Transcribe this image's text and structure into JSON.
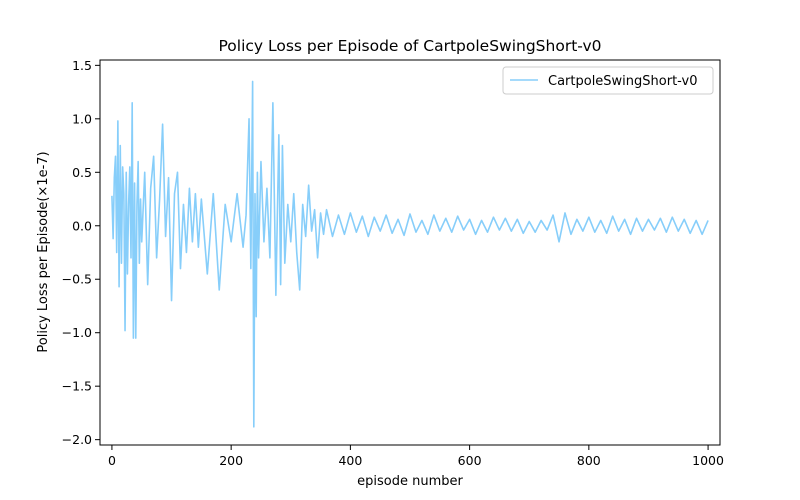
{
  "chart_data": {
    "type": "line",
    "title": "Policy Loss per Episode of CartpoleSwingShort-v0",
    "xlabel": "episode number",
    "ylabel": "Policy Loss per Episode(×1e-7)",
    "xlim": [
      -20,
      1020
    ],
    "ylim": [
      -2.05,
      1.55
    ],
    "xticks": [
      0,
      200,
      400,
      600,
      800,
      1000
    ],
    "xtick_labels": [
      "0",
      "200",
      "400",
      "600",
      "800",
      "1000"
    ],
    "yticks": [
      -2.0,
      -1.5,
      -1.0,
      -0.5,
      0.0,
      0.5,
      1.0,
      1.5
    ],
    "ytick_labels": [
      "−2.0",
      "−1.5",
      "−1.0",
      "−0.5",
      "0.0",
      "0.5",
      "1.0",
      "1.5"
    ],
    "grid": false,
    "legend": {
      "position": "top-right"
    },
    "series": [
      {
        "name": "CartpoleSwingShort-v0",
        "color": "#87cefa",
        "x": [
          0,
          2,
          4,
          6,
          8,
          10,
          12,
          14,
          16,
          18,
          20,
          22,
          24,
          26,
          28,
          30,
          32,
          34,
          36,
          38,
          40,
          42,
          44,
          46,
          48,
          50,
          55,
          60,
          65,
          70,
          75,
          80,
          85,
          90,
          95,
          100,
          105,
          110,
          115,
          120,
          125,
          130,
          135,
          140,
          145,
          150,
          160,
          170,
          180,
          190,
          200,
          210,
          220,
          225,
          230,
          233,
          236,
          238,
          240,
          242,
          244,
          246,
          250,
          255,
          260,
          265,
          270,
          275,
          280,
          283,
          286,
          290,
          295,
          300,
          305,
          310,
          315,
          320,
          325,
          330,
          335,
          340,
          345,
          350,
          355,
          360,
          370,
          380,
          390,
          400,
          410,
          420,
          430,
          440,
          450,
          460,
          470,
          480,
          490,
          500,
          510,
          520,
          530,
          540,
          550,
          560,
          570,
          580,
          590,
          600,
          610,
          620,
          630,
          640,
          650,
          660,
          670,
          680,
          690,
          700,
          710,
          720,
          730,
          740,
          750,
          760,
          770,
          780,
          790,
          800,
          810,
          820,
          830,
          840,
          850,
          860,
          870,
          880,
          890,
          900,
          910,
          920,
          930,
          940,
          950,
          960,
          970,
          980,
          990,
          1000
        ],
        "y": [
          0.28,
          -0.12,
          0.45,
          0.65,
          -0.25,
          0.98,
          -0.57,
          0.75,
          -0.35,
          0.55,
          0.3,
          -0.98,
          0.5,
          -0.45,
          0.2,
          0.55,
          -0.3,
          1.15,
          -1.05,
          0.4,
          -1.05,
          0.2,
          0.6,
          -0.35,
          0.25,
          -0.15,
          0.5,
          -0.55,
          0.35,
          0.65,
          -0.3,
          0.25,
          0.95,
          -0.1,
          0.45,
          -0.7,
          0.3,
          0.5,
          -0.4,
          0.2,
          -0.25,
          0.35,
          -0.15,
          0.3,
          -0.2,
          0.25,
          -0.45,
          0.3,
          -0.6,
          0.2,
          -0.15,
          0.3,
          -0.2,
          0.1,
          1.0,
          -0.4,
          1.35,
          -1.88,
          0.3,
          -0.85,
          0.5,
          -0.3,
          0.6,
          -0.15,
          0.35,
          -0.3,
          1.15,
          -0.65,
          0.85,
          -0.55,
          0.75,
          -0.35,
          0.2,
          -0.15,
          0.3,
          -0.25,
          -0.6,
          0.2,
          -0.1,
          0.38,
          -0.05,
          0.15,
          -0.3,
          0.12,
          -0.08,
          0.15,
          -0.1,
          0.1,
          -0.08,
          0.12,
          -0.06,
          0.09,
          -0.1,
          0.08,
          -0.05,
          0.1,
          -0.07,
          0.06,
          -0.09,
          0.11,
          -0.06,
          0.05,
          -0.08,
          0.1,
          -0.05,
          0.07,
          -0.06,
          0.09,
          -0.04,
          0.06,
          -0.08,
          0.05,
          -0.06,
          0.08,
          -0.04,
          0.07,
          -0.05,
          0.06,
          -0.07,
          0.04,
          -0.06,
          0.05,
          -0.04,
          0.1,
          -0.15,
          0.12,
          -0.08,
          0.06,
          -0.05,
          0.08,
          -0.06,
          0.05,
          -0.07,
          0.09,
          -0.05,
          0.06,
          -0.08,
          0.07,
          -0.05,
          0.06,
          -0.04,
          0.07,
          -0.06,
          0.08,
          -0.05,
          0.06,
          -0.07,
          0.05,
          -0.08,
          0.05
        ]
      }
    ]
  }
}
